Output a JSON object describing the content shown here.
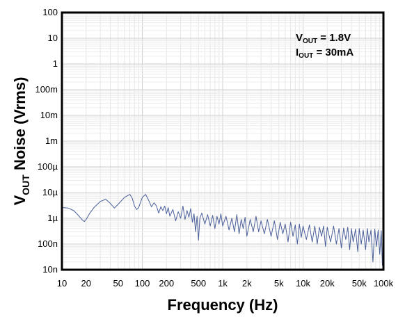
{
  "chart_data": {
    "type": "line",
    "x_scale": "log",
    "y_scale": "log",
    "xlim": [
      10,
      100000
    ],
    "ylim": [
      1e-08,
      100
    ],
    "grid": true,
    "xlabel": "Frequency (Hz)",
    "ylabel": {
      "main": "V",
      "sub": "OUT",
      "rest": " Noise (Vrms)"
    },
    "x_ticks": [
      {
        "value": 10,
        "label": "10"
      },
      {
        "value": 20,
        "label": "20"
      },
      {
        "value": 50,
        "label": "50"
      },
      {
        "value": 100,
        "label": "100"
      },
      {
        "value": 200,
        "label": "200"
      },
      {
        "value": 500,
        "label": "500"
      },
      {
        "value": 1000,
        "label": "1k"
      },
      {
        "value": 2000,
        "label": "2k"
      },
      {
        "value": 5000,
        "label": "5k"
      },
      {
        "value": 10000,
        "label": "10k"
      },
      {
        "value": 20000,
        "label": "20k"
      },
      {
        "value": 50000,
        "label": "50k"
      },
      {
        "value": 100000,
        "label": "100k"
      }
    ],
    "y_ticks": [
      {
        "value": 100,
        "label": "100"
      },
      {
        "value": 10,
        "label": "10"
      },
      {
        "value": 1,
        "label": "1"
      },
      {
        "value": 0.1,
        "label": "100m"
      },
      {
        "value": 0.01,
        "label": "10m"
      },
      {
        "value": 0.001,
        "label": "1m"
      },
      {
        "value": 0.0001,
        "label": "100µ"
      },
      {
        "value": 1e-05,
        "label": "10µ"
      },
      {
        "value": 1e-06,
        "label": "1µ"
      },
      {
        "value": 1e-07,
        "label": "100n"
      },
      {
        "value": 1e-08,
        "label": "10n"
      }
    ],
    "annotations": [
      {
        "main": "V",
        "sub": "OUT",
        "rest": " = 1.8V"
      },
      {
        "main": "I",
        "sub": "OUT",
        "rest": " = 30mA"
      }
    ],
    "series": [
      {
        "color": "#4a5f9a",
        "points": [
          [
            10,
            2.6e-06
          ],
          [
            12,
            2.5e-06
          ],
          [
            14,
            2e-06
          ],
          [
            16,
            1.3e-06
          ],
          [
            18,
            8.5e-07
          ],
          [
            19,
            7.5e-07
          ],
          [
            20,
            9e-07
          ],
          [
            22,
            1.5e-06
          ],
          [
            25,
            2.6e-06
          ],
          [
            30,
            4.5e-06
          ],
          [
            35,
            5.5e-06
          ],
          [
            40,
            3.8e-06
          ],
          [
            45,
            2.5e-06
          ],
          [
            50,
            3.5e-06
          ],
          [
            60,
            6.5e-06
          ],
          [
            70,
            8.5e-06
          ],
          [
            75,
            6e-06
          ],
          [
            80,
            3e-06
          ],
          [
            85,
            2.2e-06
          ],
          [
            90,
            2.6e-06
          ],
          [
            100,
            6.5e-06
          ],
          [
            110,
            8.5e-06
          ],
          [
            120,
            5e-06
          ],
          [
            130,
            2.8e-06
          ],
          [
            140,
            4e-06
          ],
          [
            150,
            3e-06
          ],
          [
            160,
            1.6e-06
          ],
          [
            170,
            2.8e-06
          ],
          [
            180,
            2e-06
          ],
          [
            190,
            3e-06
          ],
          [
            200,
            1.5e-06
          ],
          [
            210,
            2.6e-06
          ],
          [
            220,
            1.2e-06
          ],
          [
            240,
            2.2e-06
          ],
          [
            260,
            8e-07
          ],
          [
            280,
            1.8e-06
          ],
          [
            300,
            1e-06
          ],
          [
            320,
            3e-06
          ],
          [
            340,
            9e-07
          ],
          [
            360,
            2e-06
          ],
          [
            380,
            1.1e-06
          ],
          [
            400,
            2.4e-06
          ],
          [
            420,
            7e-07
          ],
          [
            440,
            1.5e-06
          ],
          [
            460,
            3e-07
          ],
          [
            480,
            1.2e-06
          ],
          [
            500,
            1.4e-07
          ],
          [
            520,
            1e-06
          ],
          [
            550,
            1.6e-06
          ],
          [
            600,
            6e-07
          ],
          [
            650,
            1.4e-06
          ],
          [
            700,
            5e-07
          ],
          [
            750,
            1.3e-06
          ],
          [
            800,
            4e-07
          ],
          [
            850,
            1.2e-06
          ],
          [
            900,
            6e-07
          ],
          [
            950,
            1.5e-06
          ],
          [
            1000,
            5e-07
          ],
          [
            1100,
            1.2e-06
          ],
          [
            1200,
            3.5e-07
          ],
          [
            1300,
            1e-06
          ],
          [
            1400,
            3e-07
          ],
          [
            1500,
            1.4e-06
          ],
          [
            1600,
            2.5e-07
          ],
          [
            1700,
            9e-07
          ],
          [
            1800,
            4e-07
          ],
          [
            1900,
            1.1e-06
          ],
          [
            2000,
            2e-07
          ],
          [
            2200,
            9e-07
          ],
          [
            2400,
            3e-07
          ],
          [
            2600,
            1.2e-06
          ],
          [
            2800,
            3e-07
          ],
          [
            3000,
            8e-07
          ],
          [
            3300,
            2.5e-07
          ],
          [
            3600,
            9e-07
          ],
          [
            4000,
            2e-07
          ],
          [
            4400,
            8e-07
          ],
          [
            4800,
            1.5e-07
          ],
          [
            5200,
            7e-07
          ],
          [
            5600,
            2.5e-07
          ],
          [
            6000,
            6e-07
          ],
          [
            6500,
            1.2e-07
          ],
          [
            7000,
            7e-07
          ],
          [
            7500,
            2e-07
          ],
          [
            8000,
            5.5e-07
          ],
          [
            8500,
            1e-07
          ],
          [
            9000,
            6e-07
          ],
          [
            9500,
            1.8e-07
          ],
          [
            10000,
            5e-07
          ],
          [
            11000,
            1.5e-07
          ],
          [
            12000,
            5.5e-07
          ],
          [
            13000,
            1.2e-07
          ],
          [
            14000,
            5e-07
          ],
          [
            15000,
            1e-07
          ],
          [
            16000,
            4.5e-07
          ],
          [
            17000,
            2e-07
          ],
          [
            18000,
            5e-07
          ],
          [
            19000,
            8e-08
          ],
          [
            20000,
            4.5e-07
          ],
          [
            22000,
            1.2e-07
          ],
          [
            24000,
            5e-07
          ],
          [
            26000,
            1e-07
          ],
          [
            28000,
            4e-07
          ],
          [
            30000,
            7e-08
          ],
          [
            32000,
            4.2e-07
          ],
          [
            34000,
            1.5e-07
          ],
          [
            36000,
            4.5e-07
          ],
          [
            38000,
            6e-08
          ],
          [
            40000,
            4e-07
          ],
          [
            42000,
            1.2e-07
          ],
          [
            45000,
            3.8e-07
          ],
          [
            48000,
            5e-08
          ],
          [
            50000,
            4e-07
          ],
          [
            53000,
            1e-07
          ],
          [
            56000,
            3.5e-07
          ],
          [
            60000,
            6e-08
          ],
          [
            63000,
            4e-07
          ],
          [
            66000,
            1.2e-07
          ],
          [
            70000,
            3.5e-07
          ],
          [
            74000,
            2e-08
          ],
          [
            78000,
            3.8e-07
          ],
          [
            82000,
            8e-08
          ],
          [
            86000,
            3.5e-07
          ],
          [
            90000,
            4e-08
          ],
          [
            94000,
            3.3e-07
          ],
          [
            97000,
            1.5e-08
          ],
          [
            100000,
            3e-07
          ]
        ]
      }
    ]
  }
}
